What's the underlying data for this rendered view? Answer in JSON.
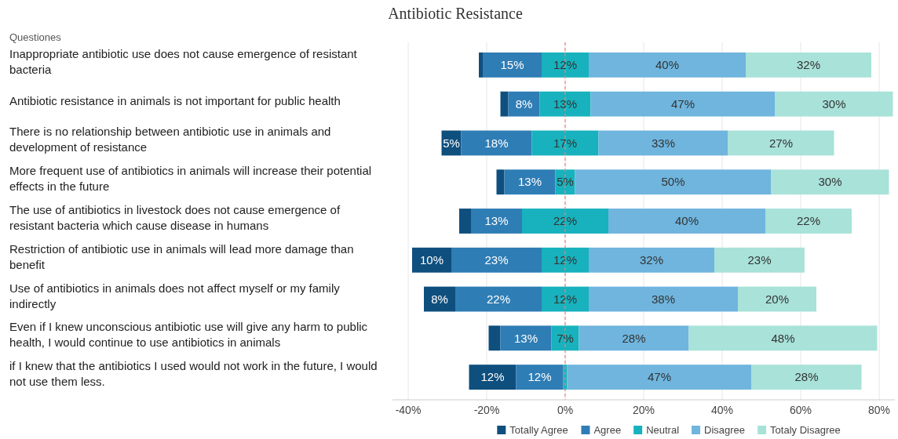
{
  "chart_data": {
    "type": "bar",
    "orientation": "horizontal",
    "title": "Antibiotic Resistance",
    "ylabel": "Questiones",
    "categories": [
      "Inappropriate antibiotic use does not cause emergence of resistant bacteria",
      "Antibiotic resistance in animals is not important for public health",
      "There is no relationship between antibiotic use in animals and development of resistance",
      "More frequent use of antibiotics in animals will increase their potential effects in the future",
      "The use of antibiotics in livestock does not cause emergence of resistant bacteria which cause disease in humans",
      "Restriction of antibiotic use in animals will lead more damage than benefit",
      "Use of antibiotics in animals does not affect myself or my family indirectly",
      "Even if I knew unconscious antibiotic use will give any harm to public health, I would continue to use antibiotics in animals",
      "if I knew that the antibiotics I used would not work in the future, I would not use them less."
    ],
    "series": [
      {
        "name": "Totally Agree",
        "color": "#0e4f7e",
        "base": [
          -22,
          -16.5,
          -31.5,
          -17.5,
          -27,
          -39,
          -36,
          -19.5,
          -24.5
        ],
        "values": [
          1,
          2,
          5,
          2,
          3,
          10,
          8,
          3,
          12
        ],
        "value_labels": [
          null,
          null,
          "5%",
          null,
          null,
          "10%",
          "8%",
          null,
          "12%"
        ]
      },
      {
        "name": "Agree",
        "color": "#2f7db5",
        "base": [
          -21,
          -14.5,
          -26.5,
          -15.5,
          -24,
          -29,
          -28,
          -16.5,
          -12.5
        ],
        "values": [
          15,
          8,
          18,
          13,
          13,
          23,
          22,
          13,
          12
        ],
        "value_labels": [
          "15%",
          "8%",
          "18%",
          "13%",
          "13%",
          "23%",
          "22%",
          "13%",
          "12%"
        ]
      },
      {
        "name": "Neutral",
        "color": "#17b2bd",
        "base": [
          -6,
          -6.5,
          -8.5,
          -2.5,
          -11,
          -6,
          -6,
          -3.5,
          -0.5
        ],
        "values": [
          12,
          13,
          17,
          5,
          22,
          12,
          12,
          7,
          1
        ],
        "value_labels": [
          "12%",
          "13%",
          "17%",
          "5%",
          "22%",
          "12%",
          "12%",
          "7%",
          null
        ]
      },
      {
        "name": "Disagree",
        "color": "#6fb5de",
        "base": [
          6,
          6.5,
          8.5,
          2.5,
          11,
          6,
          6,
          3.5,
          0.5
        ],
        "values": [
          40,
          47,
          33,
          50,
          40,
          32,
          38,
          28,
          47
        ],
        "value_labels": [
          "40%",
          "47%",
          "33%",
          "50%",
          "40%",
          "32%",
          "38%",
          "28%",
          "47%"
        ]
      },
      {
        "name": "Totaly Disagree",
        "color": "#a8e2d9",
        "base": [
          46,
          53.5,
          41.5,
          52.5,
          51,
          38,
          44,
          31.5,
          47.5
        ],
        "values": [
          32,
          30,
          27,
          30,
          22,
          23,
          20,
          48,
          28
        ],
        "value_labels": [
          "32%",
          "30%",
          "27%",
          "30%",
          "22%",
          "23%",
          "20%",
          "48%",
          "28%"
        ]
      }
    ],
    "xlim": [
      -44,
      84
    ],
    "xticks": [
      {
        "value": -40,
        "label": "-40%"
      },
      {
        "value": -20,
        "label": "-20%"
      },
      {
        "value": 0,
        "label": "0%"
      },
      {
        "value": 20,
        "label": "20%"
      },
      {
        "value": 40,
        "label": "40%"
      },
      {
        "value": 60,
        "label": "60%"
      },
      {
        "value": 80,
        "label": "80%"
      }
    ],
    "grid": "x",
    "legend": "bottom",
    "ref_lines": [
      {
        "axis": "x",
        "value": 0,
        "color": "#f08080",
        "line_style": "dashed"
      }
    ]
  }
}
